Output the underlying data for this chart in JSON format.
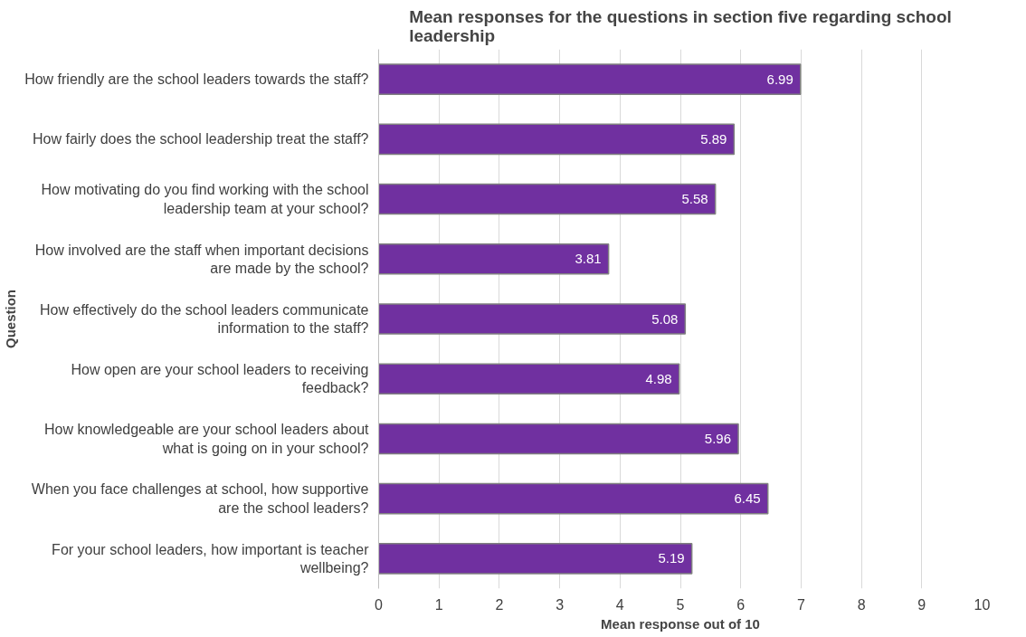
{
  "chart_data": {
    "type": "bar",
    "orientation": "horizontal",
    "title": "Mean responses for the questions in section five regarding school leadership",
    "xlabel": "Mean response out of 10",
    "ylabel": "Question",
    "categories": [
      "How friendly are the school leaders towards the staff?",
      "How fairly does the school leadership treat the staff?",
      "How motivating do you find working with the school leadership team at your school?",
      "How involved are the staff when important decisions are made by the school?",
      "How effectively do the school leaders communicate information to the staff?",
      "How open are your school leaders to receiving feedback?",
      "How knowledgeable are your school leaders about what is going on in your school?",
      "When you face challenges at school, how supportive are the school leaders?",
      "For your school leaders, how important is teacher wellbeing?"
    ],
    "values": [
      6.99,
      5.89,
      5.58,
      3.81,
      5.08,
      4.98,
      5.96,
      6.45,
      5.19
    ],
    "color": "#7030a0",
    "data_labels": true,
    "xlim": [
      0,
      10
    ],
    "xticks": [
      0,
      1,
      2,
      3,
      4,
      5,
      6,
      7,
      8,
      9,
      10
    ],
    "grid": "x"
  }
}
